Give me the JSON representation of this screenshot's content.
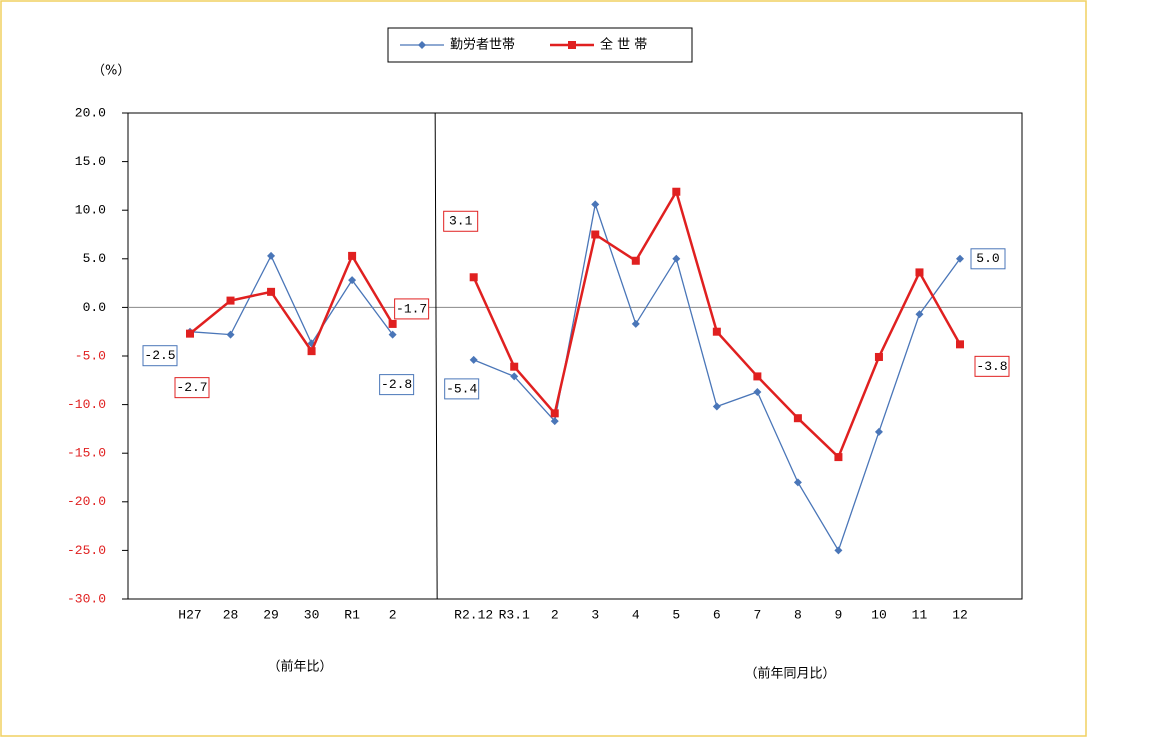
{
  "chart_data": {
    "type": "line",
    "y_label": "（%）",
    "section_labels": [
      "（前年比）",
      "（前年同月比）"
    ],
    "categories": [
      "H27",
      "28",
      "29",
      "30",
      "R1",
      "2",
      null,
      "R2.12",
      "R3.1",
      "2",
      "3",
      "4",
      "5",
      "6",
      "7",
      "8",
      "9",
      "10",
      "11",
      "12"
    ],
    "series": [
      {
        "name": "勤労者世帯",
        "color": "#4a76b8",
        "marker": "diamond",
        "values": [
          -2.5,
          -2.8,
          5.3,
          -3.7,
          2.8,
          -2.8,
          null,
          -5.4,
          -7.1,
          -11.7,
          10.6,
          -1.7,
          5.0,
          -10.2,
          -8.7,
          -18.0,
          -25.0,
          -12.8,
          -0.7,
          5.0
        ],
        "value_labels": [
          "-2.5",
          null,
          null,
          null,
          null,
          "-2.8",
          null,
          "-5.4",
          null,
          null,
          null,
          null,
          null,
          null,
          null,
          null,
          null,
          null,
          null,
          "5.0"
        ]
      },
      {
        "name": "全 世 帯",
        "color": "#e02020",
        "marker": "square",
        "values": [
          -2.7,
          0.7,
          1.6,
          -4.5,
          5.3,
          -1.7,
          null,
          3.1,
          -6.1,
          -10.9,
          7.5,
          4.8,
          11.9,
          -2.5,
          -7.1,
          -11.4,
          -15.4,
          -5.1,
          3.6,
          -3.8
        ],
        "value_labels": [
          "-2.7",
          null,
          null,
          null,
          null,
          "-1.7",
          null,
          "3.1",
          null,
          null,
          null,
          null,
          null,
          null,
          null,
          null,
          null,
          null,
          null,
          "-3.8"
        ]
      }
    ],
    "ylim": [
      -30,
      20
    ],
    "yticks": [
      {
        "value": 20,
        "label": "20.0"
      },
      {
        "value": 15,
        "label": "15.0"
      },
      {
        "value": 10,
        "label": "10.0"
      },
      {
        "value": 5,
        "label": "5.0"
      },
      {
        "value": 0,
        "label": "0.0"
      },
      {
        "value": -5,
        "label": "-5.0"
      },
      {
        "value": -10,
        "label": "-10.0"
      },
      {
        "value": -15,
        "label": "-15.0"
      },
      {
        "value": -20,
        "label": "-20.0"
      },
      {
        "value": -25,
        "label": "-25.0"
      },
      {
        "value": -30,
        "label": "-30.0"
      }
    ],
    "legend": "top"
  }
}
